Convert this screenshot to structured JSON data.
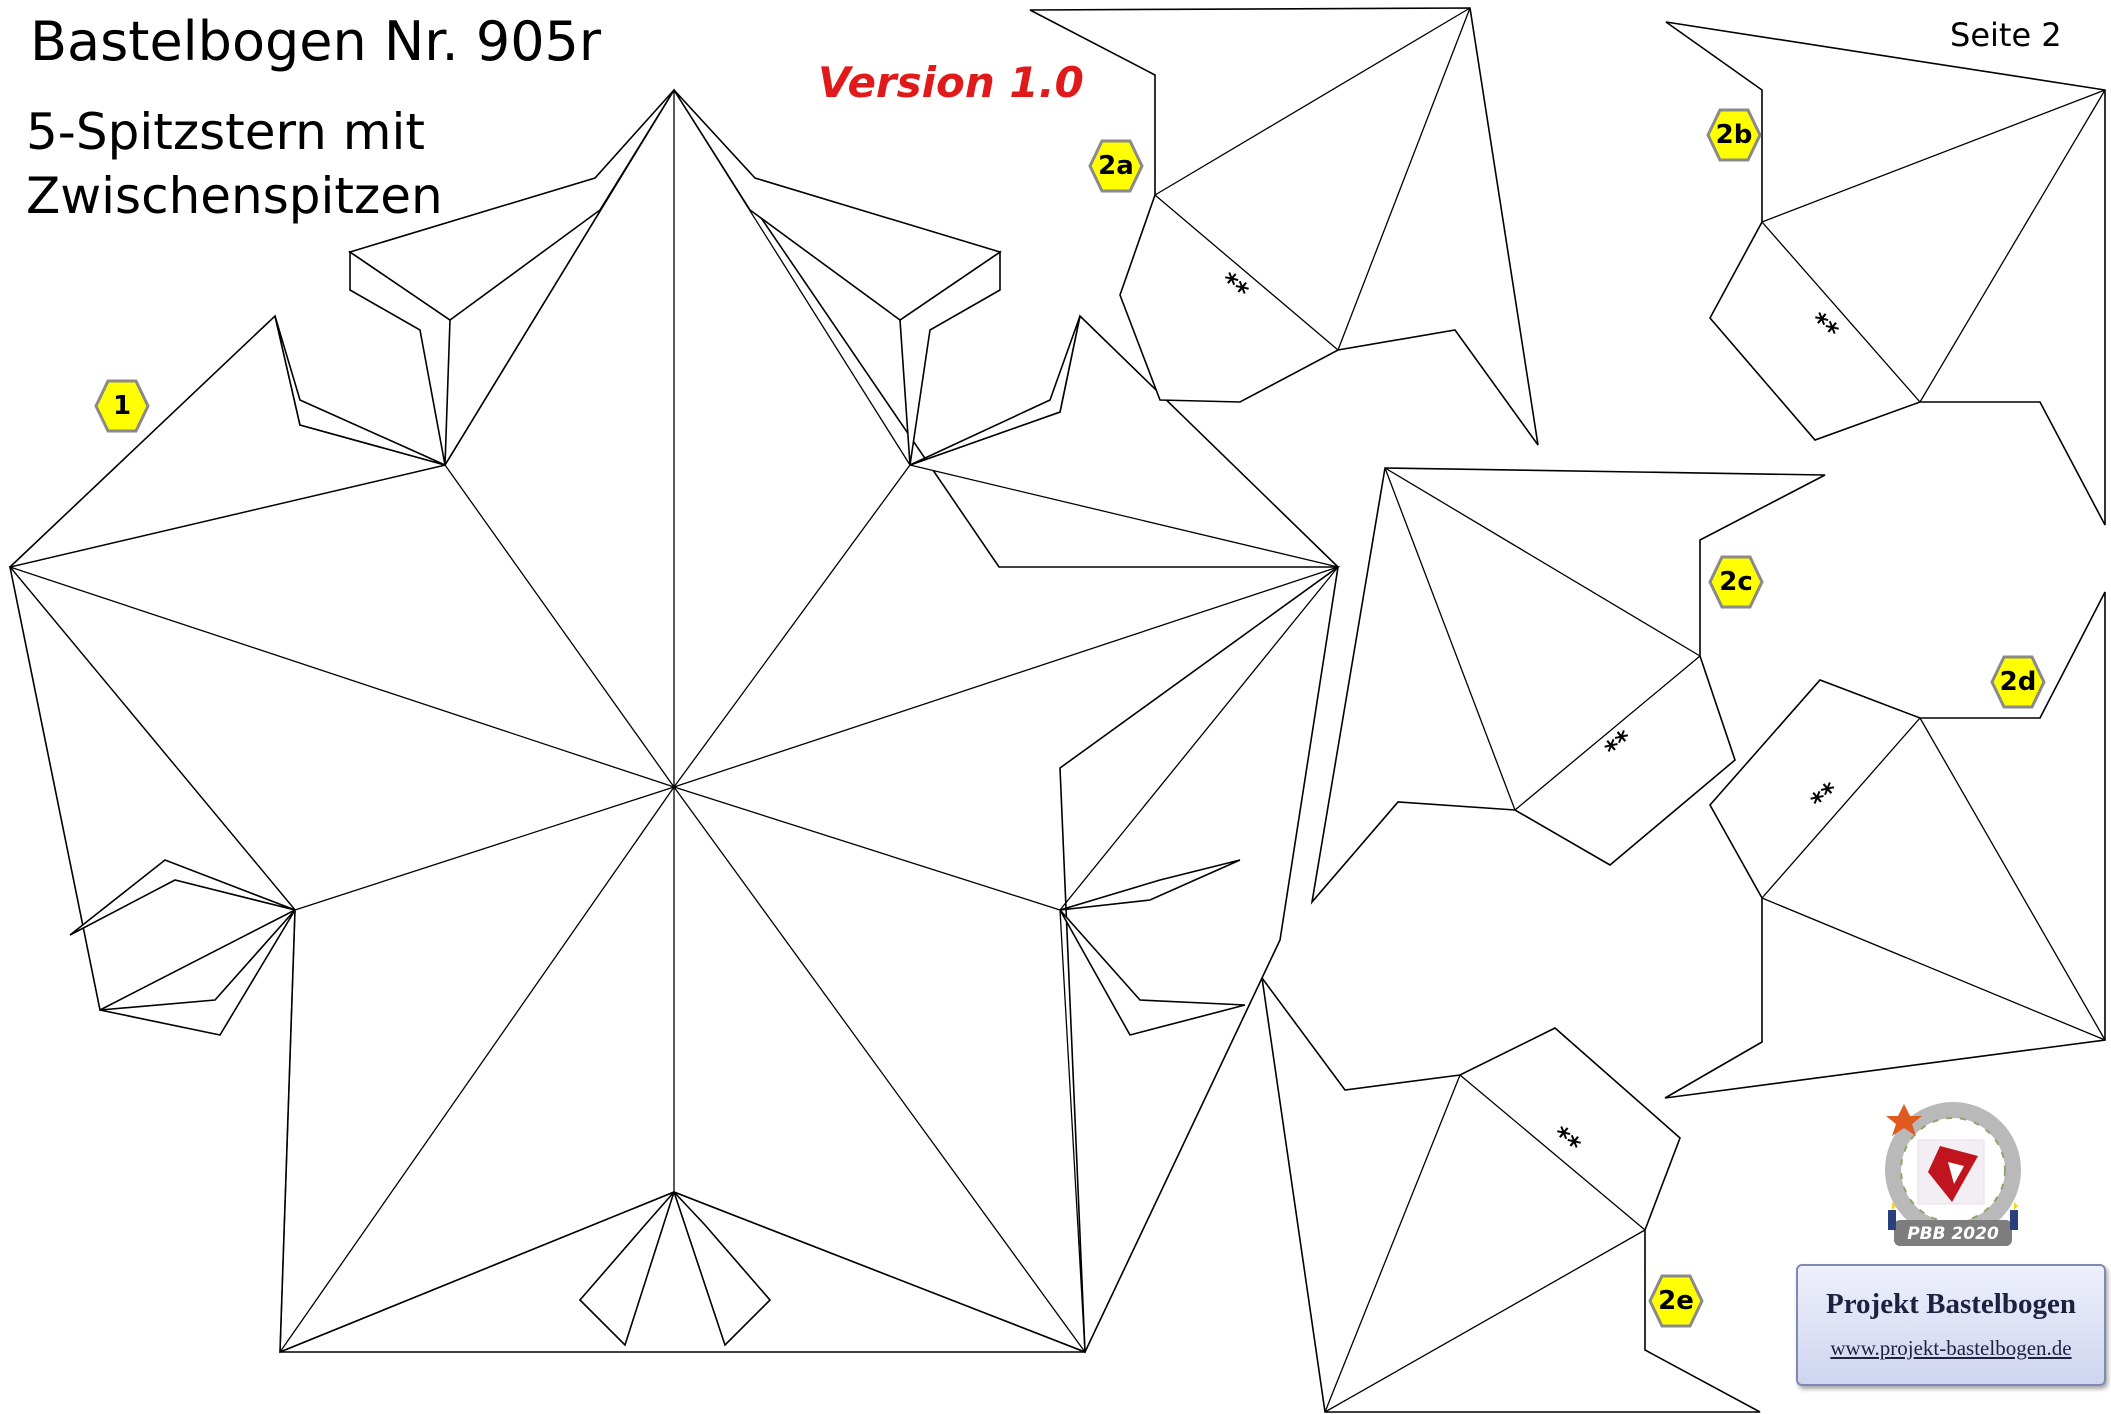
{
  "header": {
    "title": "Bastelbogen Nr. 905r",
    "subtitle": "5-Spitzstern mit Zwischenspitzen",
    "version": "Version 1.0",
    "page": "Seite 2"
  },
  "parts": [
    {
      "label": "1"
    },
    {
      "label": "2a"
    },
    {
      "label": "2b"
    },
    {
      "label": "2c"
    },
    {
      "label": "2d"
    },
    {
      "label": "2e"
    }
  ],
  "glue_mark": "**",
  "branding": {
    "logo_text": "PBB 2020",
    "name": "Projekt Bastelbogen",
    "url": "www.projekt-bastelbogen.de"
  },
  "colors": {
    "marker_fill": "#ffff00",
    "marker_stroke": "#8a8a8a",
    "version_text": "#e0191a",
    "line": "#000000"
  },
  "icons": {
    "marker": "hexagon-label-icon",
    "logo": "pbb-seal-logo"
  }
}
